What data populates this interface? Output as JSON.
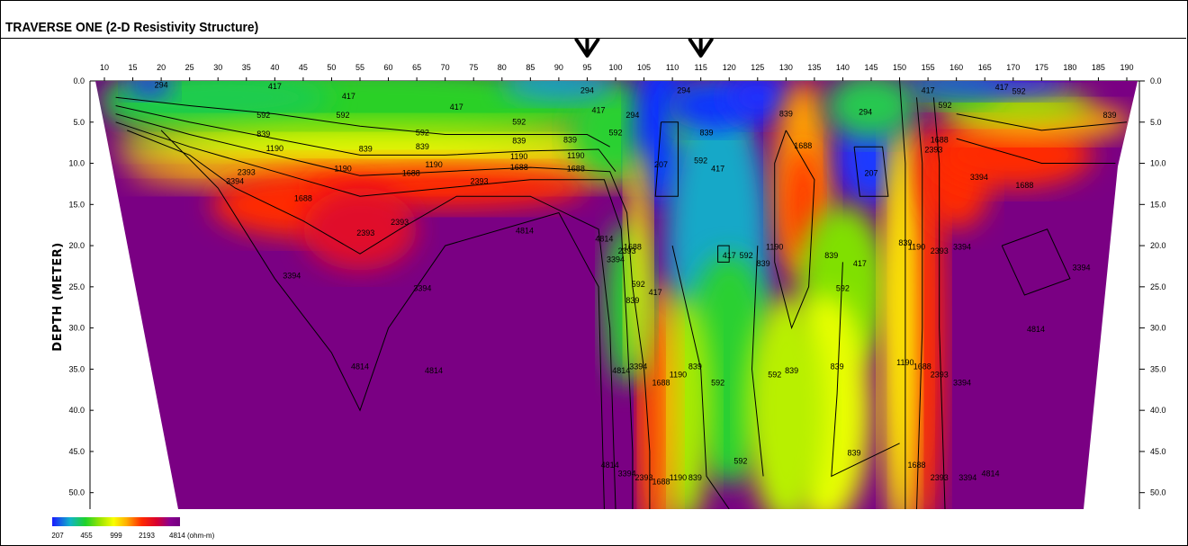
{
  "chart_data": {
    "type": "heatmap",
    "title": "TRAVERSE ONE (2-D Resistivity Structure)",
    "xlabel": "",
    "ylabel": "DEPTH (METER)",
    "x_ticks": [
      10,
      15,
      20,
      25,
      30,
      35,
      40,
      45,
      50,
      55,
      60,
      65,
      70,
      75,
      80,
      85,
      90,
      95,
      100,
      105,
      110,
      115,
      120,
      125,
      130,
      135,
      140,
      145,
      150,
      155,
      160,
      165,
      170,
      175,
      180,
      185,
      190
    ],
    "y_ticks": [
      "0.0",
      "5.0",
      "10.0",
      "15.0",
      "20.0",
      "25.0",
      "30.0",
      "35.0",
      "40.0",
      "45.0",
      "50.0"
    ],
    "xlim": [
      10,
      190
    ],
    "ylim": [
      0,
      52
    ],
    "markers": [
      95,
      115
    ],
    "contour_levels": [
      207,
      294,
      417,
      592,
      839,
      1190,
      1688,
      2393,
      3394,
      4814
    ],
    "contour_labels": [
      {
        "v": "294",
        "x": 20,
        "y": 0.8
      },
      {
        "v": "417",
        "x": 40,
        "y": 1.0
      },
      {
        "v": "417",
        "x": 53,
        "y": 2.2
      },
      {
        "v": "417",
        "x": 72,
        "y": 3.5
      },
      {
        "v": "592",
        "x": 38,
        "y": 4.5
      },
      {
        "v": "592",
        "x": 52,
        "y": 4.5
      },
      {
        "v": "592",
        "x": 66,
        "y": 6.6
      },
      {
        "v": "592",
        "x": 83,
        "y": 5.3
      },
      {
        "v": "839",
        "x": 38,
        "y": 6.8
      },
      {
        "v": "839",
        "x": 56,
        "y": 8.6
      },
      {
        "v": "839",
        "x": 66,
        "y": 8.3
      },
      {
        "v": "839",
        "x": 83,
        "y": 7.6
      },
      {
        "v": "839",
        "x": 92,
        "y": 7.5
      },
      {
        "v": "1190",
        "x": 40,
        "y": 8.5
      },
      {
        "v": "1190",
        "x": 52,
        "y": 11.0
      },
      {
        "v": "1190",
        "x": 68,
        "y": 10.5
      },
      {
        "v": "1190",
        "x": 83,
        "y": 9.5
      },
      {
        "v": "1190",
        "x": 93,
        "y": 9.4
      },
      {
        "v": "1688",
        "x": 64,
        "y": 11.5
      },
      {
        "v": "1688",
        "x": 83,
        "y": 10.8
      },
      {
        "v": "1688",
        "x": 93,
        "y": 11.0
      },
      {
        "v": "1688",
        "x": 45,
        "y": 14.6
      },
      {
        "v": "2393",
        "x": 35,
        "y": 11.4
      },
      {
        "v": "2393",
        "x": 76,
        "y": 12.5
      },
      {
        "v": "2393",
        "x": 62,
        "y": 17.5
      },
      {
        "v": "2393",
        "x": 56,
        "y": 18.8
      },
      {
        "v": "3394",
        "x": 33,
        "y": 12.5
      },
      {
        "v": "3394",
        "x": 43,
        "y": 24.0
      },
      {
        "v": "3394",
        "x": 66,
        "y": 25.5
      },
      {
        "v": "4814",
        "x": 84,
        "y": 18.5
      },
      {
        "v": "4814",
        "x": 55,
        "y": 35.0
      },
      {
        "v": "4814",
        "x": 68,
        "y": 35.5
      },
      {
        "v": "294",
        "x": 95,
        "y": 1.5
      },
      {
        "v": "417",
        "x": 97,
        "y": 3.9
      },
      {
        "v": "592",
        "x": 100,
        "y": 6.6
      },
      {
        "v": "294",
        "x": 103,
        "y": 4.5
      },
      {
        "v": "207",
        "x": 108,
        "y": 10.5
      },
      {
        "v": "294",
        "x": 112,
        "y": 1.5
      },
      {
        "v": "839",
        "x": 116,
        "y": 6.6
      },
      {
        "v": "592",
        "x": 115,
        "y": 10.0
      },
      {
        "v": "417",
        "x": 118,
        "y": 11.0
      },
      {
        "v": "839",
        "x": 130,
        "y": 4.3
      },
      {
        "v": "4814",
        "x": 98,
        "y": 19.5
      },
      {
        "v": "3394",
        "x": 100,
        "y": 22.0
      },
      {
        "v": "2393",
        "x": 102,
        "y": 21.0
      },
      {
        "v": "1688",
        "x": 103,
        "y": 20.5
      },
      {
        "v": "592",
        "x": 104,
        "y": 25.0
      },
      {
        "v": "839",
        "x": 103,
        "y": 27.0
      },
      {
        "v": "417",
        "x": 107,
        "y": 26.0
      },
      {
        "v": "417",
        "x": 120,
        "y": 21.5
      },
      {
        "v": "592",
        "x": 123,
        "y": 21.5
      },
      {
        "v": "839",
        "x": 126,
        "y": 22.5
      },
      {
        "v": "1190",
        "x": 128,
        "y": 20.5
      },
      {
        "v": "839",
        "x": 138,
        "y": 21.5
      },
      {
        "v": "417",
        "x": 143,
        "y": 22.5
      },
      {
        "v": "592",
        "x": 140,
        "y": 25.5
      },
      {
        "v": "1688",
        "x": 133,
        "y": 8.2
      },
      {
        "v": "207",
        "x": 145,
        "y": 11.5
      },
      {
        "v": "294",
        "x": 144,
        "y": 4.1
      },
      {
        "v": "839",
        "x": 151,
        "y": 20.0
      },
      {
        "v": "1190",
        "x": 153,
        "y": 20.5
      },
      {
        "v": "2393",
        "x": 157,
        "y": 21.0
      },
      {
        "v": "3394",
        "x": 161,
        "y": 20.5
      },
      {
        "v": "1688",
        "x": 157,
        "y": 7.5
      },
      {
        "v": "2393",
        "x": 156,
        "y": 8.7
      },
      {
        "v": "417",
        "x": 155,
        "y": 1.5
      },
      {
        "v": "592",
        "x": 158,
        "y": 3.3
      },
      {
        "v": "417",
        "x": 168,
        "y": 1.1
      },
      {
        "v": "592",
        "x": 171,
        "y": 1.6
      },
      {
        "v": "839",
        "x": 187,
        "y": 4.5
      },
      {
        "v": "1688",
        "x": 172,
        "y": 13.0
      },
      {
        "v": "3394",
        "x": 164,
        "y": 12.0
      },
      {
        "v": "3394",
        "x": 182,
        "y": 23.0
      },
      {
        "v": "4814",
        "x": 174,
        "y": 30.5
      },
      {
        "v": "4814",
        "x": 101,
        "y": 35.5
      },
      {
        "v": "3394",
        "x": 104,
        "y": 35.0
      },
      {
        "v": "1688",
        "x": 108,
        "y": 37.0
      },
      {
        "v": "1190",
        "x": 111,
        "y": 36.0
      },
      {
        "v": "839",
        "x": 114,
        "y": 35.0
      },
      {
        "v": "592",
        "x": 118,
        "y": 37.0
      },
      {
        "v": "592",
        "x": 128,
        "y": 36.0
      },
      {
        "v": "839",
        "x": 131,
        "y": 35.5
      },
      {
        "v": "839",
        "x": 139,
        "y": 35.0
      },
      {
        "v": "1190",
        "x": 151,
        "y": 34.5
      },
      {
        "v": "1688",
        "x": 154,
        "y": 35.0
      },
      {
        "v": "2393",
        "x": 157,
        "y": 36.0
      },
      {
        "v": "3394",
        "x": 161,
        "y": 37.0
      },
      {
        "v": "4814",
        "x": 99,
        "y": 47.0
      },
      {
        "v": "3394",
        "x": 102,
        "y": 48.0
      },
      {
        "v": "2393",
        "x": 105,
        "y": 48.5
      },
      {
        "v": "1688",
        "x": 108,
        "y": 49.0
      },
      {
        "v": "1190",
        "x": 111,
        "y": 48.5
      },
      {
        "v": "839",
        "x": 114,
        "y": 48.5
      },
      {
        "v": "592",
        "x": 122,
        "y": 46.5
      },
      {
        "v": "839",
        "x": 142,
        "y": 45.5
      },
      {
        "v": "1688",
        "x": 153,
        "y": 47.0
      },
      {
        "v": "2393",
        "x": 157,
        "y": 48.5
      },
      {
        "v": "3394",
        "x": 162,
        "y": 48.5
      },
      {
        "v": "4814",
        "x": 166,
        "y": 48.0
      }
    ],
    "colorbar": {
      "ticks": [
        "207",
        "455",
        "999",
        "2193",
        "4814 (ohm-m)"
      ],
      "colors": [
        "#1a1aff",
        "#12b4c8",
        "#1ed22a",
        "#a0e600",
        "#f8ff00",
        "#ffb000",
        "#ff2a00",
        "#d80030",
        "#8a0090",
        "#730080"
      ]
    }
  }
}
